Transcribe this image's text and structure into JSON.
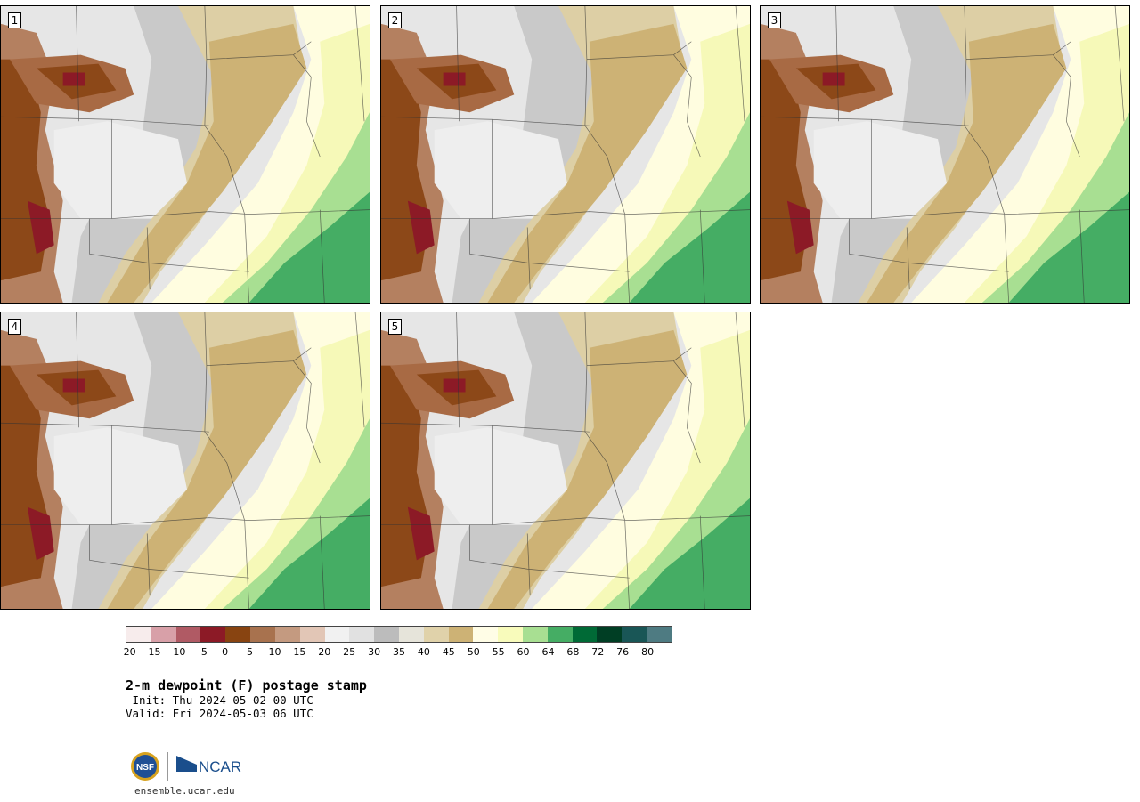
{
  "panels": [
    {
      "label": "1"
    },
    {
      "label": "2"
    },
    {
      "label": "3"
    },
    {
      "label": "4"
    },
    {
      "label": "5"
    }
  ],
  "colorbar": {
    "colors": [
      "#f7ecec",
      "#d8a0a8",
      "#b05a64",
      "#8c1a26",
      "#884411",
      "#a8724e",
      "#c49a80",
      "#e2c6b6",
      "#f1f1f1",
      "#e1e1e1",
      "#bcbcbc",
      "#e6e4da",
      "#e0d2aa",
      "#cdb275",
      "#fffde6",
      "#f8fbbb",
      "#a8df92",
      "#45ad64",
      "#006a36",
      "#003e24",
      "#195656",
      "#4e7b82"
    ],
    "ticks": [
      "−20",
      "−15",
      "−10",
      "−5",
      "0",
      "5",
      "10",
      "15",
      "20",
      "25",
      "30",
      "35",
      "40",
      "45",
      "50",
      "55",
      "60",
      "64",
      "68",
      "72",
      "76",
      "80"
    ]
  },
  "title": "2-m dewpoint (F) postage stamp",
  "init": " Init: Thu 2024-05-02 00 UTC",
  "valid": "Valid: Fri 2024-05-03 06 UTC",
  "logos": [
    "NSF",
    "NCAR"
  ],
  "site": "ensemble.ucar.edu"
}
